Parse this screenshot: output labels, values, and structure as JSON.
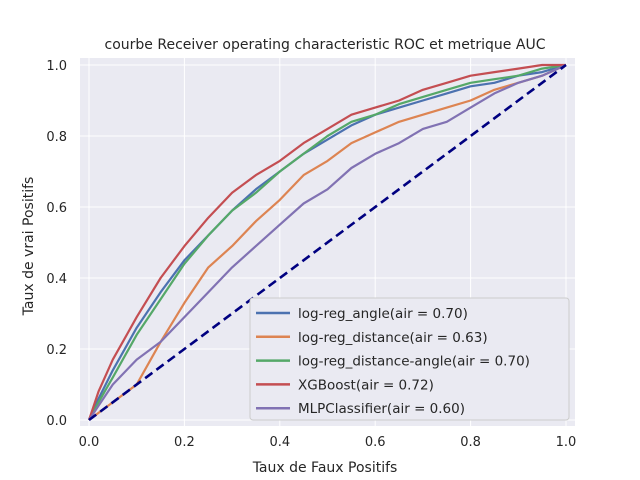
{
  "chart_data": {
    "type": "line",
    "title": "courbe Receiver operating characteristic ROC et metrique AUC",
    "xlabel": "Taux de Faux Positifs",
    "ylabel": "Taux de vrai Positifs",
    "xlim": [
      0,
      1
    ],
    "ylim": [
      0,
      1
    ],
    "xticks": [
      "0.0",
      "0.2",
      "0.4",
      "0.6",
      "0.8",
      "1.0"
    ],
    "yticks": [
      "0.0",
      "0.2",
      "0.4",
      "0.6",
      "0.8",
      "1.0"
    ],
    "grid": true,
    "legend_position": "lower-right",
    "background": "#eaeaf2",
    "series": [
      {
        "name": "log-reg_angle(air = 0.70)",
        "color": "#4c72b0",
        "x": [
          0,
          0.02,
          0.05,
          0.1,
          0.15,
          0.2,
          0.25,
          0.3,
          0.35,
          0.4,
          0.45,
          0.5,
          0.55,
          0.6,
          0.65,
          0.7,
          0.75,
          0.8,
          0.85,
          0.9,
          0.95,
          1.0
        ],
        "y": [
          0,
          0.06,
          0.14,
          0.26,
          0.36,
          0.45,
          0.52,
          0.59,
          0.65,
          0.7,
          0.75,
          0.79,
          0.83,
          0.86,
          0.88,
          0.9,
          0.92,
          0.94,
          0.95,
          0.97,
          0.98,
          1.0
        ]
      },
      {
        "name": "log-reg_distance(air = 0.63)",
        "color": "#dd8452",
        "x": [
          0,
          0.02,
          0.05,
          0.1,
          0.15,
          0.2,
          0.25,
          0.3,
          0.35,
          0.4,
          0.45,
          0.5,
          0.55,
          0.6,
          0.65,
          0.7,
          0.75,
          0.8,
          0.85,
          0.9,
          0.95,
          1.0
        ],
        "y": [
          0,
          0.02,
          0.05,
          0.1,
          0.22,
          0.33,
          0.43,
          0.49,
          0.56,
          0.62,
          0.69,
          0.73,
          0.78,
          0.81,
          0.84,
          0.86,
          0.88,
          0.9,
          0.93,
          0.95,
          0.97,
          1.0
        ]
      },
      {
        "name": "log-reg_distance-angle(air = 0.70)",
        "color": "#55a868",
        "x": [
          0,
          0.02,
          0.05,
          0.1,
          0.15,
          0.2,
          0.25,
          0.3,
          0.35,
          0.4,
          0.45,
          0.5,
          0.55,
          0.6,
          0.65,
          0.7,
          0.75,
          0.8,
          0.85,
          0.9,
          0.95,
          1.0
        ],
        "y": [
          0,
          0.05,
          0.12,
          0.24,
          0.34,
          0.44,
          0.52,
          0.59,
          0.64,
          0.7,
          0.75,
          0.8,
          0.84,
          0.86,
          0.89,
          0.91,
          0.93,
          0.95,
          0.96,
          0.97,
          0.99,
          1.0
        ]
      },
      {
        "name": "XGBoost(air = 0.72)",
        "color": "#c44e52",
        "x": [
          0,
          0.02,
          0.05,
          0.1,
          0.15,
          0.2,
          0.25,
          0.3,
          0.35,
          0.4,
          0.45,
          0.5,
          0.55,
          0.6,
          0.65,
          0.7,
          0.75,
          0.8,
          0.85,
          0.9,
          0.95,
          1.0
        ],
        "y": [
          0,
          0.08,
          0.17,
          0.29,
          0.4,
          0.49,
          0.57,
          0.64,
          0.69,
          0.73,
          0.78,
          0.82,
          0.86,
          0.88,
          0.9,
          0.93,
          0.95,
          0.97,
          0.98,
          0.99,
          1.0,
          1.0
        ]
      },
      {
        "name": "MLPClassifier(air = 0.60)",
        "color": "#8172b3",
        "x": [
          0,
          0.02,
          0.05,
          0.1,
          0.15,
          0.2,
          0.25,
          0.3,
          0.35,
          0.4,
          0.45,
          0.5,
          0.55,
          0.6,
          0.65,
          0.7,
          0.75,
          0.8,
          0.85,
          0.9,
          0.95,
          1.0
        ],
        "y": [
          0,
          0.04,
          0.1,
          0.17,
          0.22,
          0.29,
          0.36,
          0.43,
          0.49,
          0.55,
          0.61,
          0.65,
          0.71,
          0.75,
          0.78,
          0.82,
          0.84,
          0.88,
          0.92,
          0.95,
          0.97,
          1.0
        ]
      },
      {
        "name": "",
        "color": "#000080",
        "dashed": true,
        "x": [
          0,
          1
        ],
        "y": [
          0,
          1
        ]
      }
    ]
  }
}
